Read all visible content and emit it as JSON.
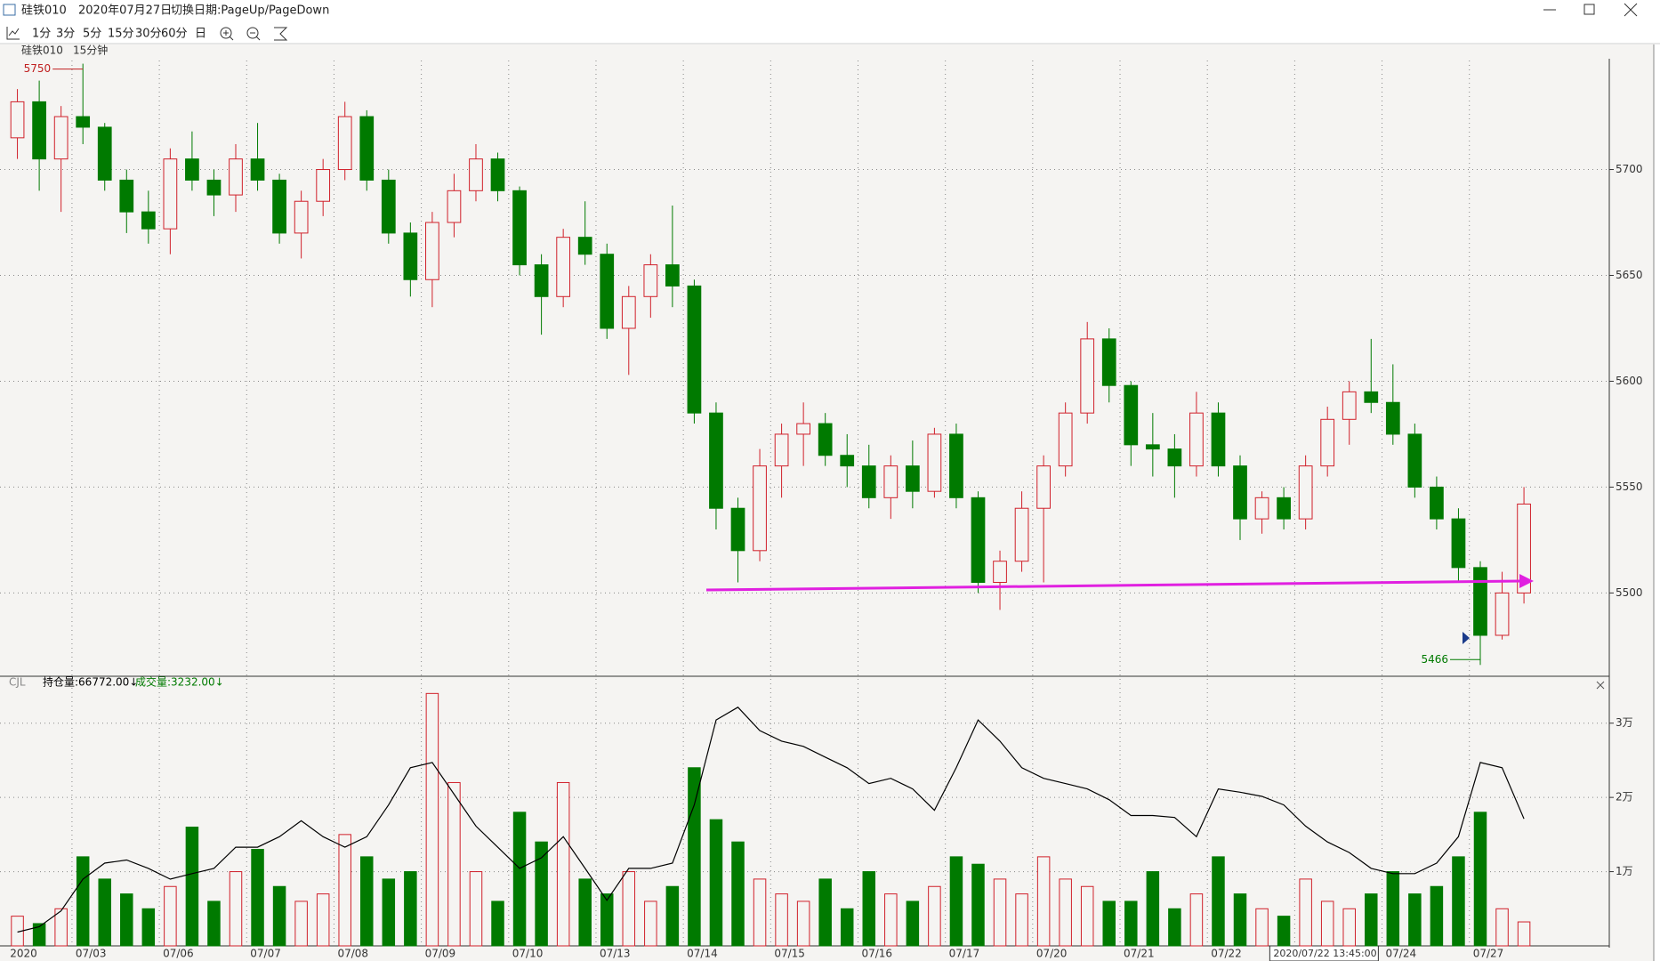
{
  "window": {
    "title": "硅铁010",
    "date": "2020年07月27日",
    "hint": "切换日期:PageUp/PageDown"
  },
  "toolbar": [
    "1分",
    "3分",
    "5分",
    "15分",
    "30分",
    "60分",
    "日"
  ],
  "chart_data": [
    {
      "type": "candlestick",
      "label": "硅铁010",
      "period": "15分钟",
      "x": [
        "2020",
        null,
        null,
        "07/03",
        null,
        null,
        null,
        "07/06",
        null,
        null,
        null,
        "07/07",
        null,
        null,
        null,
        "07/08",
        null,
        null,
        null,
        "07/09",
        null,
        null,
        null,
        "07/10",
        null,
        null,
        null,
        "07/13",
        null,
        null,
        null,
        "07/14",
        null,
        null,
        null,
        "07/15",
        null,
        null,
        null,
        "07/16",
        null,
        null,
        null,
        "07/17",
        null,
        null,
        null,
        "07/20",
        null,
        null,
        null,
        "07/21",
        null,
        null,
        null,
        "07/22",
        null,
        null,
        null,
        null,
        null,
        null,
        null,
        "07/24",
        null,
        null,
        null,
        "07/27",
        null,
        null
      ],
      "open": [
        5715,
        5732,
        5705,
        5725,
        5720,
        5695,
        5680,
        5672,
        5705,
        5695,
        5688,
        5705,
        5695,
        5670,
        5685,
        5700,
        5725,
        5695,
        5670,
        5648,
        5675,
        5690,
        5705,
        5690,
        5655,
        5640,
        5668,
        5660,
        5625,
        5640,
        5655,
        5645,
        5585,
        5540,
        5520,
        5560,
        5575,
        5580,
        5565,
        5560,
        5545,
        5560,
        5548,
        5575,
        5545,
        5505,
        5515,
        5540,
        5560,
        5585,
        5620,
        5598,
        5570,
        5568,
        5560,
        5585,
        5560,
        5535,
        5545,
        5535,
        5560,
        5582,
        5595,
        5590,
        5575,
        5550,
        5535,
        5512,
        5480,
        5500
      ],
      "high": [
        5738,
        5742,
        5730,
        5750,
        5722,
        5700,
        5690,
        5710,
        5718,
        5700,
        5712,
        5722,
        5698,
        5690,
        5705,
        5732,
        5728,
        5700,
        5675,
        5680,
        5698,
        5712,
        5708,
        5692,
        5660,
        5672,
        5685,
        5665,
        5645,
        5660,
        5683,
        5648,
        5590,
        5545,
        5568,
        5580,
        5590,
        5585,
        5575,
        5570,
        5565,
        5572,
        5578,
        5580,
        5548,
        5520,
        5548,
        5565,
        5590,
        5628,
        5625,
        5600,
        5585,
        5575,
        5595,
        5590,
        5565,
        5548,
        5550,
        5565,
        5588,
        5600,
        5620,
        5608,
        5580,
        5555,
        5540,
        5515,
        5510,
        5550
      ],
      "low": [
        5705,
        5690,
        5680,
        5712,
        5690,
        5670,
        5665,
        5660,
        5690,
        5678,
        5680,
        5690,
        5665,
        5658,
        5678,
        5695,
        5690,
        5665,
        5640,
        5635,
        5668,
        5685,
        5685,
        5650,
        5622,
        5635,
        5655,
        5620,
        5603,
        5630,
        5635,
        5580,
        5530,
        5505,
        5515,
        5545,
        5560,
        5560,
        5550,
        5540,
        5535,
        5540,
        5545,
        5540,
        5500,
        5492,
        5510,
        5505,
        5555,
        5580,
        5590,
        5560,
        5555,
        5545,
        5555,
        5555,
        5525,
        5528,
        5530,
        5530,
        5555,
        5570,
        5585,
        5570,
        5545,
        5530,
        5505,
        5466,
        5478,
        5495
      ],
      "close": [
        5732,
        5705,
        5725,
        5720,
        5695,
        5680,
        5672,
        5705,
        5695,
        5688,
        5705,
        5695,
        5670,
        5685,
        5700,
        5725,
        5695,
        5670,
        5648,
        5675,
        5690,
        5705,
        5690,
        5655,
        5640,
        5668,
        5660,
        5625,
        5640,
        5655,
        5645,
        5585,
        5540,
        5520,
        5560,
        5575,
        5580,
        5565,
        5560,
        5545,
        5560,
        5548,
        5575,
        5545,
        5505,
        5515,
        5540,
        5560,
        5585,
        5620,
        5598,
        5570,
        5568,
        5560,
        5585,
        5560,
        5535,
        5545,
        5535,
        5560,
        5582,
        5595,
        5590,
        5575,
        5550,
        5535,
        5512,
        5480,
        5500,
        5542
      ],
      "up_color": "#d0202a",
      "down_color": "#007a00",
      "ylim": [
        5461.5,
        5751.5
      ],
      "yticks": [
        5500,
        5550,
        5600,
        5650,
        5700
      ],
      "grid": true,
      "max_label": "5750",
      "min_label": "5466",
      "cursor_label": "2020/07/22 13:45:00"
    },
    {
      "type": "volume",
      "label": "CJL",
      "series": [
        {
          "name": "持仓量:66772.00↓",
          "color": "#000000",
          "axis": "y2",
          "values": [
            61626,
            61870,
            62590,
            64030,
            64760,
            64900,
            64520,
            64030,
            64280,
            64520,
            65480,
            65480,
            65960,
            66680,
            65960,
            65480,
            65960,
            67400,
            69090,
            69330,
            67890,
            66440,
            65480,
            64520,
            65000,
            65960,
            64520,
            63070,
            64520,
            64520,
            64760,
            67400,
            71260,
            71840,
            70780,
            70300,
            70060,
            69570,
            69090,
            68370,
            68610,
            68130,
            67160,
            69090,
            71260,
            70300,
            69090,
            68610,
            68370,
            68130,
            67640,
            66920,
            66920,
            66830,
            65960,
            68130,
            67980,
            67790,
            67400,
            66440,
            65720,
            65240,
            64520,
            64280,
            64280,
            64760,
            65960,
            69330,
            69090,
            66772
          ]
        },
        {
          "name": "成交量:3232.00↓",
          "color": "#007a00",
          "values": [
            4000,
            3000,
            5000,
            12000,
            9000,
            7000,
            5000,
            8000,
            16000,
            6000,
            10000,
            13000,
            8000,
            6000,
            7000,
            15000,
            12000,
            9000,
            10000,
            34000,
            22000,
            10000,
            6000,
            18000,
            14000,
            22000,
            9000,
            7000,
            10000,
            6000,
            8000,
            24000,
            17000,
            14000,
            9000,
            7000,
            6000,
            9000,
            5000,
            10000,
            7000,
            6000,
            8000,
            12000,
            11000,
            9000,
            7000,
            12000,
            9000,
            8000,
            6000,
            6000,
            10000,
            5000,
            7000,
            12000,
            7000,
            5000,
            4000,
            9000,
            6000,
            5000,
            7000,
            10000,
            7000,
            8000,
            12000,
            18000,
            5000,
            3232
          ]
        }
      ],
      "ylim": [
        0,
        35000
      ],
      "yticks": [
        {
          "value": 10000,
          "label": "1万"
        },
        {
          "value": 20000,
          "label": "2万"
        },
        {
          "value": 30000,
          "label": "3万"
        }
      ],
      "y2lim": [
        61000,
        72800
      ]
    }
  ]
}
